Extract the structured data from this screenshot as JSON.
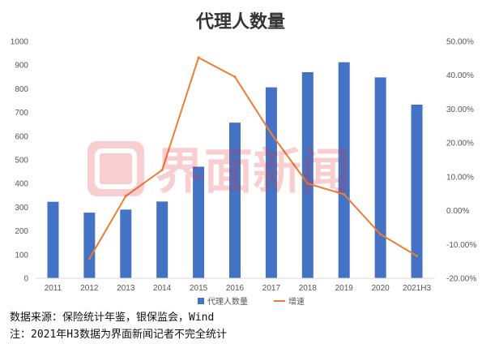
{
  "chart_data": {
    "type": "bar",
    "title": "代理人数量",
    "categories": [
      "2011",
      "2012",
      "2013",
      "2014",
      "2015",
      "2016",
      "2017",
      "2018",
      "2019",
      "2020",
      "2021H3"
    ],
    "series": [
      {
        "name": "代理人数量",
        "type": "bar",
        "axis": "left",
        "color": "#4472C4",
        "values": [
          323,
          277,
          290,
          324,
          471,
          657,
          806,
          870,
          912,
          848,
          733
        ]
      },
      {
        "name": "增速",
        "type": "line",
        "axis": "right",
        "color": "#ED7D31",
        "values": [
          null,
          -14.2,
          4.3,
          12.0,
          45.2,
          39.5,
          22.7,
          8.0,
          4.8,
          -7.0,
          -13.4
        ]
      }
    ],
    "ylim_left": [
      0,
      1000
    ],
    "yticks_left": [
      "0",
      "100",
      "200",
      "300",
      "400",
      "500",
      "600",
      "700",
      "800",
      "900",
      "1000"
    ],
    "ylim_right": [
      -20,
      50
    ],
    "yticks_right": [
      "-20.00%",
      "-10.00%",
      "0.00%",
      "10.00%",
      "20.00%",
      "30.00%",
      "40.00%",
      "50.00%"
    ],
    "grid": false,
    "legend_position": "bottom"
  },
  "footer": {
    "source": "数据来源：保险统计年鉴，银保监会，Wind",
    "note": "注：2021年H3数据为界面新闻记者不完全统计"
  },
  "watermark": {
    "text": "界面新闻",
    "color": "#E8272C"
  }
}
